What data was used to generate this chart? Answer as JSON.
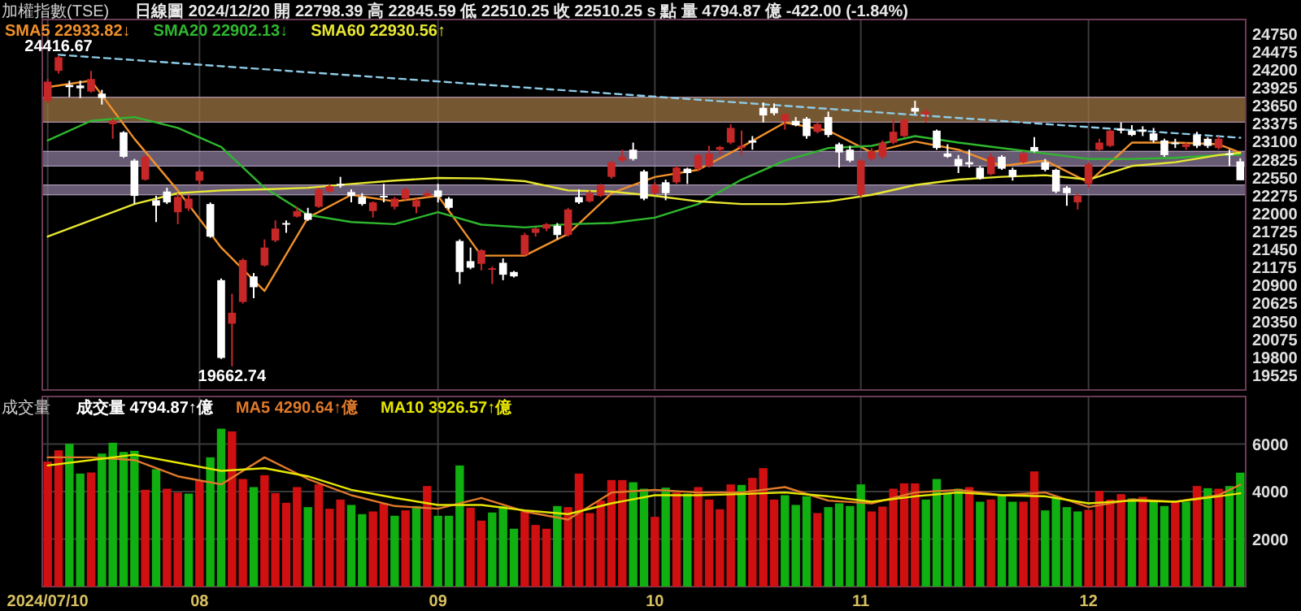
{
  "chart_data": [
    {
      "type": "candlestick",
      "title": "加權指數(TSE)",
      "subtitle": "日線圖 2024/12/20 開 22798.39 高 22845.59 低 22510.25 收 22510.25 s 點 量 4794.87 億 -422.00 (-1.84%)",
      "categories": [
        "2024/07/10",
        null,
        null,
        null,
        null,
        null,
        null,
        null,
        null,
        null,
        null,
        null,
        null,
        null,
        "08",
        null,
        null,
        null,
        null,
        null,
        null,
        null,
        null,
        null,
        null,
        null,
        null,
        null,
        null,
        null,
        null,
        null,
        null,
        null,
        null,
        null,
        "09",
        null,
        null,
        null,
        null,
        null,
        null,
        null,
        null,
        null,
        null,
        null,
        null,
        null,
        null,
        null,
        null,
        null,
        null,
        null,
        "10",
        null,
        null,
        null,
        null,
        null,
        null,
        null,
        null,
        null,
        null,
        null,
        null,
        null,
        null,
        null,
        null,
        null,
        null,
        "11",
        null,
        null,
        null,
        null,
        null,
        null,
        null,
        null,
        null,
        null,
        null,
        null,
        null,
        null,
        null,
        null,
        null,
        null,
        null,
        null,
        "12",
        null,
        null,
        null,
        null,
        null,
        null,
        null,
        null,
        null,
        null,
        null,
        null,
        null,
        null
      ],
      "ohlc": [
        [
          23727,
          24059,
          23685,
          24018
        ],
        [
          24184,
          24416.67,
          24143,
          24392
        ],
        [
          23968,
          24034,
          23785,
          23935
        ],
        [
          23960,
          24034,
          23768,
          23918
        ],
        [
          23868,
          24184,
          23851,
          24059
        ],
        [
          23835,
          23893,
          23668,
          23768
        ],
        [
          23369,
          23452,
          23144,
          23419
        ],
        [
          23244,
          23260,
          22853,
          22870
        ],
        [
          22811,
          22836,
          22146,
          22271
        ],
        [
          22520,
          22895,
          22504,
          22870
        ],
        [
          22204,
          22271,
          21871,
          22121
        ],
        [
          22337,
          22395,
          22146,
          22171
        ],
        [
          22021,
          22312,
          21838,
          22254
        ],
        [
          22079,
          22287,
          22038,
          22229
        ],
        [
          22504,
          22670,
          22437,
          22645
        ],
        [
          22146,
          22171,
          21630,
          21647
        ],
        [
          20981,
          21006,
          19775,
          19791
        ],
        [
          20315,
          20773,
          19662.74,
          20482
        ],
        [
          20648,
          21314,
          20623,
          21289
        ],
        [
          21039,
          21089,
          20706,
          20873
        ],
        [
          21206,
          21605,
          21189,
          21480
        ],
        [
          21588,
          21896,
          21563,
          21771
        ],
        [
          21855,
          21896,
          21705,
          21830
        ],
        [
          21954,
          22104,
          21938,
          22038
        ],
        [
          22004,
          22088,
          21888,
          21904
        ],
        [
          22104,
          22395,
          22088,
          22371
        ],
        [
          22337,
          22454,
          22312,
          22420
        ],
        [
          22454,
          22562,
          22395,
          22429
        ],
        [
          22329,
          22370,
          22171,
          22271
        ],
        [
          22254,
          22312,
          22121,
          22146
        ],
        [
          22038,
          22187,
          21938,
          22171
        ],
        [
          22271,
          22454,
          22171,
          22246
        ],
        [
          22104,
          22254,
          22063,
          22229
        ],
        [
          22229,
          22395,
          22204,
          22371
        ],
        [
          22104,
          22229,
          22004,
          22204
        ],
        [
          22271,
          22354,
          22254,
          22312
        ],
        [
          22354,
          22454,
          22171,
          22254
        ],
        [
          22229,
          22254,
          22063,
          22088
        ],
        [
          21580,
          21605,
          20923,
          21106
        ],
        [
          21272,
          21480,
          21148,
          21172
        ],
        [
          21231,
          21455,
          21131,
          21439
        ],
        [
          21148,
          21189,
          20923,
          21164
        ],
        [
          21247,
          21314,
          20981,
          21064
        ],
        [
          21106,
          21123,
          21023,
          21039
        ],
        [
          21372,
          21705,
          21356,
          21672
        ],
        [
          21705,
          21788,
          21647,
          21771
        ],
        [
          21771,
          21855,
          21730,
          21838
        ],
        [
          21813,
          21855,
          21605,
          21672
        ],
        [
          21672,
          22088,
          21647,
          22063
        ],
        [
          22254,
          22370,
          22146,
          22171
        ],
        [
          22187,
          22354,
          22171,
          22312
        ],
        [
          22271,
          22454,
          22254,
          22437
        ],
        [
          22562,
          22811,
          22537,
          22786
        ],
        [
          22811,
          22978,
          22786,
          22870
        ],
        [
          22978,
          23086,
          22811,
          22836
        ],
        [
          22645,
          22670,
          22204,
          22229
        ],
        [
          22312,
          22479,
          22287,
          22437
        ],
        [
          22479,
          22520,
          22204,
          22312
        ],
        [
          22479,
          22728,
          22454,
          22703
        ],
        [
          22687,
          22703,
          22454,
          22620
        ],
        [
          22687,
          22920,
          22645,
          22895
        ],
        [
          22728,
          23036,
          22703,
          22920
        ],
        [
          22978,
          23036,
          22895,
          23019
        ],
        [
          23086,
          23369,
          23061,
          23311
        ],
        [
          23003,
          23269,
          22895,
          23036
        ],
        [
          23119,
          23186,
          22978,
          23086
        ],
        [
          23618,
          23702,
          23394,
          23502
        ],
        [
          23618,
          23685,
          23502,
          23535
        ],
        [
          23419,
          23535,
          23286,
          23519
        ],
        [
          23419,
          23477,
          23336,
          23352
        ],
        [
          23452,
          23477,
          23144,
          23186
        ],
        [
          23252,
          23394,
          23227,
          23369
        ],
        [
          23477,
          23560,
          23169,
          23202
        ],
        [
          23061,
          23086,
          22703,
          22936
        ],
        [
          22978,
          23036,
          22786,
          22811
        ],
        [
          22287,
          22836,
          22254,
          22811
        ],
        [
          22836,
          23003,
          22811,
          22953
        ],
        [
          22870,
          23119,
          22836,
          23086
        ],
        [
          23086,
          23452,
          23061,
          23252
        ],
        [
          23186,
          23452,
          23169,
          23435
        ],
        [
          23618,
          23727,
          23519,
          23560
        ],
        [
          23519,
          23602,
          23394,
          23560
        ],
        [
          23269,
          23286,
          22978,
          23003
        ],
        [
          22920,
          23061,
          22853,
          22870
        ],
        [
          22836,
          22895,
          22620,
          22728
        ],
        [
          22786,
          22978,
          22703,
          22753
        ],
        [
          22703,
          22728,
          22520,
          22537
        ],
        [
          22603,
          22920,
          22587,
          22870
        ],
        [
          22870,
          22895,
          22670,
          22687
        ],
        [
          22670,
          22703,
          22504,
          22562
        ],
        [
          22786,
          22953,
          22770,
          22920
        ],
        [
          23019,
          23169,
          22936,
          22953
        ],
        [
          22786,
          22836,
          22645,
          22670
        ],
        [
          22670,
          22687,
          22312,
          22337
        ],
        [
          22395,
          22420,
          22121,
          22312
        ],
        [
          22171,
          22312,
          22063,
          22271
        ],
        [
          22454,
          22786,
          22395,
          22753
        ],
        [
          22978,
          23144,
          22953,
          23086
        ],
        [
          23036,
          23286,
          23019,
          23269
        ],
        [
          23302,
          23394,
          23227,
          23269
        ],
        [
          23269,
          23352,
          23186,
          23202
        ],
        [
          23286,
          23336,
          23186,
          23252
        ],
        [
          23227,
          23311,
          23086,
          23119
        ],
        [
          23119,
          23144,
          22870,
          22895
        ],
        [
          23086,
          23144,
          23003,
          23061
        ],
        [
          23019,
          23086,
          22978,
          23061
        ],
        [
          23202,
          23252,
          23003,
          23036
        ],
        [
          23144,
          23169,
          23003,
          23036
        ],
        [
          23003,
          23186,
          22978,
          23144
        ],
        [
          22920,
          22978,
          22728,
          22895
        ],
        [
          22798.39,
          22845.59,
          22510.25,
          22510.25
        ]
      ],
      "colors": [
        "#c62828",
        "#c62828",
        "#ffffff",
        "#ffffff",
        "#c62828",
        "#ffffff",
        "#c62828",
        "#ffffff",
        "#ffffff",
        "#c62828",
        "#ffffff",
        "#ffffff",
        "#c62828",
        "#c62828",
        "#c62828",
        "#ffffff",
        "#ffffff",
        "#c62828",
        "#c62828",
        "#ffffff",
        "#c62828",
        "#c62828",
        "#ffffff",
        "#c62828",
        "#ffffff",
        "#c62828",
        "#c62828",
        "#ffffff",
        "#ffffff",
        "#ffffff",
        "#c62828",
        "#ffffff",
        "#c62828",
        "#c62828",
        "#c62828",
        "#c62828",
        "#ffffff",
        "#ffffff",
        "#ffffff",
        "#ffffff",
        "#c62828",
        "#c62828",
        "#ffffff",
        "#ffffff",
        "#c62828",
        "#c62828",
        "#c62828",
        "#ffffff",
        "#c62828",
        "#ffffff",
        "#c62828",
        "#c62828",
        "#c62828",
        "#c62828",
        "#ffffff",
        "#ffffff",
        "#c62828",
        "#ffffff",
        "#c62828",
        "#ffffff",
        "#c62828",
        "#c62828",
        "#c62828",
        "#c62828",
        "#c62828",
        "#ffffff",
        "#ffffff",
        "#ffffff",
        "#c62828",
        "#ffffff",
        "#ffffff",
        "#c62828",
        "#ffffff",
        "#ffffff",
        "#ffffff",
        "#c62828",
        "#c62828",
        "#c62828",
        "#c62828",
        "#c62828",
        "#ffffff",
        "#c62828",
        "#ffffff",
        "#ffffff",
        "#ffffff",
        "#ffffff",
        "#ffffff",
        "#c62828",
        "#ffffff",
        "#ffffff",
        "#c62828",
        "#ffffff",
        "#ffffff",
        "#ffffff",
        "#ffffff",
        "#c62828",
        "#c62828",
        "#c62828",
        "#c62828",
        "#ffffff",
        "#ffffff",
        "#ffffff",
        "#ffffff",
        "#ffffff",
        "#ffffff",
        "#c62828",
        "#ffffff",
        "#ffffff",
        "#c62828",
        "#ffffff",
        "#ffffff"
      ],
      "series": [
        {
          "name": "SMA5 22933.82↓",
          "type": "line",
          "color": "#f0902a",
          "values": [
            23935,
            null,
            null,
            null,
            24034,
            null,
            null,
            null,
            23144,
            null,
            null,
            null,
            22354,
            null,
            null,
            null,
            21480,
            null,
            null,
            null,
            20815,
            null,
            null,
            null,
            21938,
            null,
            null,
            null,
            22287,
            null,
            null,
            null,
            22187,
            null,
            null,
            null,
            22271,
            null,
            null,
            null,
            21356,
            null,
            null,
            null,
            21356,
            null,
            null,
            null,
            21688,
            null,
            null,
            null,
            22312,
            null,
            null,
            null,
            22560,
            null,
            null,
            null,
            22670,
            null,
            null,
            null,
            23019,
            null,
            null,
            null,
            23394,
            null,
            null,
            null,
            23269,
            null,
            null,
            null,
            22936,
            null,
            null,
            null,
            23103,
            null,
            null,
            null,
            22978,
            null,
            null,
            null,
            22728,
            null,
            null,
            null,
            22811,
            null,
            null,
            null,
            22479,
            null,
            null,
            null,
            23086,
            null,
            null,
            null,
            23086,
            null,
            null,
            null,
            23061,
            null,
            22933.82
          ]
        },
        {
          "name": "SMA20 22902.13↓",
          "type": "line",
          "color": "#2eb82e",
          "values": [
            23119,
            null,
            null,
            null,
            23419,
            null,
            null,
            null,
            23477,
            null,
            null,
            null,
            23311,
            null,
            null,
            null,
            23019,
            null,
            null,
            null,
            22395,
            null,
            null,
            null,
            21979,
            null,
            null,
            null,
            21871,
            null,
            null,
            null,
            21838,
            null,
            null,
            null,
            22021,
            null,
            null,
            null,
            21830,
            null,
            null,
            null,
            21788,
            null,
            null,
            null,
            21838,
            null,
            null,
            null,
            21855,
            null,
            null,
            null,
            21938,
            null,
            null,
            null,
            22146,
            null,
            null,
            null,
            22520,
            null,
            null,
            null,
            22811,
            null,
            null,
            null,
            23003,
            null,
            null,
            null,
            23036,
            null,
            null,
            null,
            23186,
            null,
            null,
            null,
            23086,
            null,
            null,
            null,
            23003,
            null,
            null,
            null,
            22920,
            null,
            null,
            null,
            22836,
            null,
            null,
            null,
            22836,
            null,
            null,
            null,
            22853,
            null,
            null,
            null,
            22895,
            null,
            22902.13
          ]
        },
        {
          "name": "SMA60 22930.56↑",
          "type": "line",
          "color": "#e8e830",
          "values": [
            21647,
            null,
            null,
            null,
            21896,
            null,
            null,
            null,
            22146,
            null,
            null,
            null,
            22312,
            null,
            null,
            null,
            22354,
            null,
            null,
            null,
            22371,
            null,
            null,
            null,
            22395,
            null,
            null,
            null,
            22454,
            null,
            null,
            null,
            22504,
            null,
            null,
            null,
            22545,
            null,
            null,
            null,
            22537,
            null,
            null,
            null,
            22495,
            null,
            null,
            null,
            22354,
            null,
            null,
            null,
            22337,
            null,
            null,
            null,
            22271,
            null,
            null,
            null,
            22187,
            null,
            null,
            null,
            22146,
            null,
            null,
            null,
            22146,
            null,
            null,
            null,
            22187,
            null,
            null,
            null,
            22287,
            null,
            null,
            null,
            22437,
            null,
            null,
            null,
            22520,
            null,
            null,
            null,
            22562,
            null,
            null,
            null,
            22587,
            null,
            null,
            null,
            22520,
            null,
            null,
            null,
            22728,
            null,
            null,
            null,
            22786,
            null,
            null,
            null,
            22895,
            null,
            22930.56
          ]
        },
        {
          "type": "line",
          "color": "#8ecbe6",
          "line_style": "dashed",
          "values": [
            null,
            24430,
            null,
            null,
            null,
            null,
            null,
            null,
            null,
            null,
            null,
            null,
            null,
            null,
            null,
            null,
            null,
            null,
            null,
            null,
            null,
            null,
            null,
            null,
            null,
            null,
            null,
            null,
            null,
            null,
            null,
            null,
            null,
            null,
            null,
            null,
            null,
            null,
            null,
            null,
            null,
            null,
            null,
            null,
            null,
            null,
            null,
            null,
            null,
            null,
            null,
            null,
            null,
            null,
            null,
            null,
            null,
            null,
            null,
            null,
            null,
            null,
            null,
            null,
            null,
            null,
            null,
            null,
            null,
            null,
            null,
            null,
            null,
            null,
            null,
            null,
            null,
            null,
            null,
            null,
            null,
            null,
            null,
            null,
            null,
            null,
            null,
            null,
            null,
            null,
            null,
            null,
            null,
            null,
            null,
            null,
            null,
            null,
            null,
            null,
            null,
            null,
            null,
            null,
            null,
            null,
            null,
            null,
            null,
            null,
            23160
          ]
        }
      ],
      "bands": [
        {
          "axis": "y",
          "from": 23400,
          "to": 23780,
          "color": "#9c7443"
        },
        {
          "axis": "y",
          "from": 22728,
          "to": 22953,
          "color": "#8a7a9a"
        },
        {
          "axis": "y",
          "from": 22287,
          "to": 22437,
          "color": "#8a7a9a"
        }
      ],
      "annotations": [
        {
          "text": "24416.67",
          "y": 24416.67
        },
        {
          "text": "19662.74",
          "y": 19662.74
        }
      ],
      "ylim": [
        19300,
        24970
      ],
      "yticks": [
        19525,
        19800,
        20075,
        20350,
        20625,
        20900,
        21175,
        21450,
        21725,
        22000,
        22275,
        22550,
        22825,
        23100,
        23375,
        23650,
        23925,
        24200,
        24475,
        24750
      ],
      "grid": "x",
      "legend": "top left",
      "tick_labels": "y"
    },
    {
      "type": "bar",
      "title": "成交量",
      "categories": [
        "2024/07/10",
        null,
        null,
        null,
        null,
        null,
        null,
        null,
        null,
        null,
        null,
        null,
        null,
        null,
        "08",
        null,
        null,
        null,
        null,
        null,
        null,
        null,
        null,
        null,
        null,
        null,
        null,
        null,
        null,
        null,
        null,
        null,
        null,
        null,
        null,
        null,
        "09",
        null,
        null,
        null,
        null,
        null,
        null,
        null,
        null,
        null,
        null,
        null,
        null,
        null,
        null,
        null,
        null,
        null,
        null,
        null,
        "10",
        null,
        null,
        null,
        null,
        null,
        null,
        null,
        null,
        null,
        null,
        null,
        null,
        null,
        null,
        null,
        null,
        null,
        null,
        "11",
        null,
        null,
        null,
        null,
        null,
        null,
        null,
        null,
        null,
        null,
        null,
        null,
        null,
        null,
        null,
        null,
        null,
        null,
        null,
        null,
        "12",
        null,
        null,
        null,
        null,
        null,
        null,
        null,
        null,
        null,
        null,
        null,
        null,
        null,
        null
      ],
      "series": [
        {
          "name": "成交量 4794.87↑億",
          "color": "#ffffff",
          "values": [
            5258,
            5736,
            6009,
            4757,
            4802,
            5599,
            6054,
            5667,
            5713,
            4074,
            4939,
            4120,
            3960,
            3915,
            4461,
            5440,
            6646,
            6532,
            4529,
            4188,
            4689,
            3937,
            3528,
            4188,
            3346,
            4302,
            3277,
            3664,
            3437,
            3050,
            3164,
            3505,
            2982,
            3209,
            3391,
            4233,
            2982,
            2982,
            5098,
            3323,
            2777,
            3118,
            3391,
            2435,
            3164,
            2595,
            2435,
            3391,
            3346,
            4757,
            3095,
            3619,
            4484,
            4484,
            4393,
            4120,
            2936,
            4165,
            3960,
            3915,
            4188,
            3664,
            3255,
            4302,
            4279,
            4575,
            4984,
            3664,
            3846,
            3437,
            3801,
            3095,
            3346,
            3505,
            3391,
            4302,
            3164,
            3368,
            4120,
            4347,
            4347,
            3664,
            4529,
            3915,
            4120,
            4188,
            3573,
            3664,
            3824,
            3573,
            3573,
            4848,
            3209,
            3801,
            3346,
            3164,
            3232,
            4029,
            3664,
            3892,
            3710,
            3778,
            3619,
            3391,
            3573,
            3573,
            4233,
            4142,
            4120,
            4233,
            4794.87
          ],
          "colors": [
            "#d01010",
            "#d01010",
            "#10b010",
            "#10b010",
            "#d01010",
            "#10b010",
            "#10b010",
            "#10b010",
            "#10b010",
            "#d01010",
            "#10b010",
            "#d01010",
            "#d01010",
            "#10b010",
            "#d01010",
            "#10b010",
            "#10b010",
            "#d01010",
            "#d01010",
            "#10b010",
            "#d01010",
            "#d01010",
            "#d01010",
            "#d01010",
            "#10b010",
            "#d01010",
            "#d01010",
            "#d01010",
            "#10b010",
            "#10b010",
            "#d01010",
            "#d01010",
            "#10b010",
            "#d01010",
            "#10b010",
            "#d01010",
            "#10b010",
            "#10b010",
            "#10b010",
            "#d01010",
            "#d01010",
            "#10b010",
            "#10b010",
            "#10b010",
            "#d01010",
            "#d01010",
            "#d01010",
            "#10b010",
            "#d01010",
            "#d01010",
            "#d01010",
            "#d01010",
            "#d01010",
            "#d01010",
            "#10b010",
            "#10b010",
            "#d01010",
            "#10b010",
            "#d01010",
            "#10b010",
            "#d01010",
            "#d01010",
            "#d01010",
            "#d01010",
            "#10b010",
            "#d01010",
            "#d01010",
            "#d01010",
            "#10b010",
            "#10b010",
            "#10b010",
            "#d01010",
            "#10b010",
            "#10b010",
            "#10b010",
            "#10b010",
            "#d01010",
            "#d01010",
            "#d01010",
            "#d01010",
            "#d01010",
            "#10b010",
            "#10b010",
            "#10b010",
            "#10b010",
            "#d01010",
            "#10b010",
            "#d01010",
            "#10b010",
            "#10b010",
            "#d01010",
            "#d01010",
            "#10b010",
            "#10b010",
            "#10b010",
            "#10b010",
            "#d01010",
            "#d01010",
            "#d01010",
            "#d01010",
            "#10b010",
            "#d01010",
            "#10b010",
            "#10b010",
            "#d01010",
            "#10b010",
            "#d01010",
            "#10b010",
            "#d01010",
            "#10b010",
            "#10b010"
          ]
        },
        {
          "name": "MA5 4290.64↑億",
          "type": "line",
          "color": "#e07a2a",
          "values": [
            5440,
            null,
            null,
            null,
            5440,
            null,
            null,
            null,
            5326,
            null,
            null,
            null,
            4643,
            null,
            null,
            null,
            4302,
            null,
            null,
            null,
            5440,
            null,
            null,
            null,
            4529,
            null,
            null,
            null,
            3846,
            null,
            null,
            null,
            3391,
            null,
            null,
            null,
            3277,
            null,
            null,
            null,
            3733,
            null,
            null,
            null,
            3164,
            null,
            null,
            null,
            2822,
            null,
            null,
            null,
            3960,
            null,
            null,
            null,
            4074,
            null,
            null,
            null,
            3960,
            null,
            null,
            null,
            3960,
            null,
            null,
            null,
            4188,
            null,
            null,
            null,
            3619,
            null,
            null,
            null,
            3505,
            null,
            null,
            null,
            3960,
            null,
            null,
            null,
            4074,
            null,
            null,
            null,
            3846,
            null,
            null,
            null,
            3960,
            null,
            null,
            null,
            3346,
            null,
            null,
            null,
            3664,
            null,
            null,
            null,
            3573,
            null,
            null,
            null,
            3846,
            null,
            4290.64
          ]
        },
        {
          "name": "MA10 3926.57↑億",
          "type": "line",
          "color": "#e6e600",
          "values": [
            5098,
            null,
            null,
            null,
            5326,
            null,
            null,
            null,
            5553,
            null,
            null,
            null,
            5212,
            null,
            null,
            null,
            4871,
            null,
            null,
            null,
            4984,
            null,
            null,
            null,
            4643,
            null,
            null,
            null,
            4074,
            null,
            null,
            null,
            3733,
            null,
            null,
            null,
            3437,
            null,
            null,
            null,
            3437,
            null,
            null,
            null,
            3209,
            null,
            null,
            null,
            3050,
            null,
            null,
            null,
            3505,
            null,
            null,
            null,
            3846,
            null,
            null,
            null,
            3846,
            null,
            null,
            null,
            3892,
            null,
            null,
            null,
            3960,
            null,
            null,
            null,
            3801,
            null,
            null,
            null,
            3573,
            null,
            null,
            null,
            3801,
            null,
            null,
            null,
            3960,
            null,
            null,
            null,
            3846,
            null,
            null,
            null,
            3801,
            null,
            null,
            null,
            3505,
            null,
            null,
            null,
            3619,
            null,
            null,
            null,
            3573,
            null,
            null,
            null,
            3801,
            null,
            3926.57
          ]
        }
      ],
      "ylim": [
        0,
        8000
      ],
      "yticks": [
        2000,
        4000,
        6000
      ],
      "grid": true,
      "legend": "top left"
    }
  ]
}
